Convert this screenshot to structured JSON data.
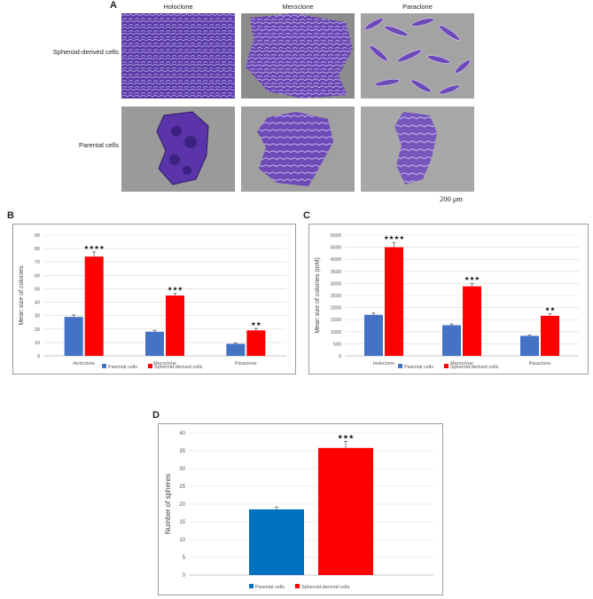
{
  "panel_a": {
    "letter": "A",
    "columns": [
      "Holoclone",
      "Meroclone",
      "Paraclone"
    ],
    "rows": [
      "Spheroid-derived cells",
      "Parental cells"
    ],
    "scale_bar": "200 μm"
  },
  "colors": {
    "parental": "#4472C4",
    "spheroid": "#FF0000",
    "parental_d": "#0070C0",
    "stain": "#6a3fb5",
    "background": "#8e8e8e"
  },
  "chart_data": [
    {
      "panel": "B",
      "type": "bar",
      "categories": [
        "Holoclone",
        "Meroclone",
        "Paraclone"
      ],
      "series": [
        {
          "name": "Parental cells",
          "values": [
            29,
            18,
            9
          ],
          "errors": [
            1.5,
            1,
            0.5
          ]
        },
        {
          "name": "Spheroid-derived cells",
          "values": [
            74,
            45,
            19
          ],
          "errors": [
            3.5,
            1.5,
            1.5
          ]
        }
      ],
      "significance": [
        "★★★★",
        "★★★",
        "★★"
      ],
      "ylabel": "Mean size of colonies",
      "ylim": [
        0,
        90
      ],
      "yticks": [
        0,
        10,
        20,
        30,
        40,
        50,
        60,
        70,
        80,
        90
      ],
      "grid": true,
      "legend": "bottom"
    },
    {
      "panel": "C",
      "type": "bar",
      "categories": [
        "Holoclone",
        "Meroclone",
        "Paraclone"
      ],
      "series": [
        {
          "name": "Parental cells",
          "values": [
            1700,
            1270,
            830
          ],
          "errors": [
            70,
            50,
            30
          ]
        },
        {
          "name": "Spheroid-derived cells",
          "values": [
            4500,
            2880,
            1660
          ],
          "errors": [
            200,
            130,
            80
          ]
        }
      ],
      "significance": [
        "★★★★",
        "★★★",
        "★★"
      ],
      "ylabel": "Mean size of colonies (mM)",
      "ylim": [
        0,
        5000
      ],
      "yticks": [
        0,
        500,
        1000,
        1500,
        2000,
        2500,
        3000,
        3500,
        4000,
        4500,
        5000
      ],
      "grid": true,
      "legend": "bottom"
    },
    {
      "panel": "D",
      "type": "bar",
      "categories": [
        ""
      ],
      "series": [
        {
          "name": "Parental cells",
          "values": [
            18.5
          ],
          "errors": [
            0.7
          ]
        },
        {
          "name": "Spheroid-derived cells",
          "values": [
            35.8
          ],
          "errors": [
            1.8
          ]
        }
      ],
      "significance": [
        "★★★"
      ],
      "ylabel": "Number of spheres",
      "ylim": [
        0,
        40
      ],
      "yticks": [
        0,
        5,
        10,
        15,
        20,
        25,
        30,
        35,
        40
      ],
      "grid": true,
      "legend": "bottom"
    }
  ]
}
